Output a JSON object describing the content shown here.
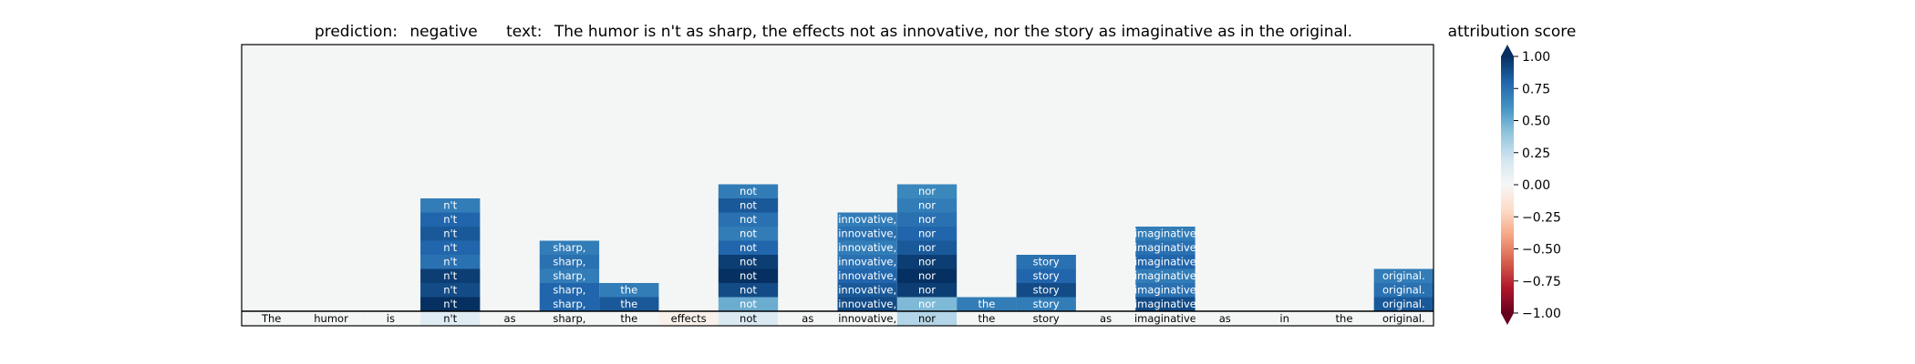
{
  "title": {
    "prediction_label": "prediction:",
    "prediction_value": "negative",
    "text_label": "text:",
    "text_value": "The humor is n't as sharp, the effects not as innovative, nor the story as imaginative as in the original."
  },
  "colorbar": {
    "label": "attribution score",
    "ticks": [
      "1.00",
      "0.75",
      "0.50",
      "0.25",
      "0.00",
      "−0.25",
      "−0.50",
      "−0.75",
      "−1.00"
    ],
    "tick_values": [
      1.0,
      0.75,
      0.5,
      0.25,
      0.0,
      -0.25,
      -0.5,
      -0.75,
      -1.0
    ],
    "colormap": "RdBu"
  },
  "chart_data": {
    "type": "heatmap",
    "title": "prediction:  negative     text:  The humor is n't as sharp, the effects not as innovative, nor the story as imaginative as in the original.",
    "tokens": [
      "The",
      "humor",
      "is",
      "n't",
      "as",
      "sharp,",
      "the",
      "effects",
      "not",
      "as",
      "innovative,",
      "nor",
      "the",
      "story",
      "as",
      "imaginative",
      "as",
      "in",
      "the",
      "original."
    ],
    "token_scores": [
      0.0,
      0.0,
      0.0,
      0.12,
      0.0,
      0.0,
      0.0,
      -0.05,
      0.15,
      0.0,
      0.0,
      0.3,
      0.0,
      0.0,
      0.0,
      0.0,
      0.0,
      0.0,
      0.0,
      0.02
    ],
    "columns": [
      {
        "token": "n't",
        "col": 3,
        "scores": [
          1.0,
          0.9,
          0.95,
          0.75,
          0.8,
          0.85,
          0.8,
          0.7
        ]
      },
      {
        "token": "sharp,",
        "col": 5,
        "scores": [
          0.8,
          0.8,
          0.7,
          0.75,
          0.7
        ]
      },
      {
        "token": "the",
        "col": 6,
        "scores": [
          0.85,
          0.7
        ]
      },
      {
        "token": "not",
        "col": 8,
        "scores": [
          0.5,
          0.9,
          1.0,
          0.95,
          0.8,
          0.7,
          0.75,
          0.85,
          0.7
        ]
      },
      {
        "token": "innovative,",
        "col": 10,
        "scores": [
          0.9,
          0.85,
          0.8,
          0.75,
          0.7,
          0.75,
          0.7
        ]
      },
      {
        "token": "nor",
        "col": 11,
        "scores": [
          0.45,
          0.95,
          1.0,
          0.95,
          0.85,
          0.8,
          0.75,
          0.7,
          0.65
        ]
      },
      {
        "token": "the",
        "col": 12,
        "scores": [
          0.7
        ]
      },
      {
        "token": "story",
        "col": 13,
        "scores": [
          0.7,
          0.9,
          0.8,
          0.75
        ]
      },
      {
        "token": "imaginative",
        "col": 15,
        "scores": [
          0.9,
          0.75,
          0.7,
          0.8,
          0.75,
          0.7
        ]
      },
      {
        "token": "original.",
        "col": 19,
        "scores": [
          0.85,
          0.75,
          0.7
        ]
      }
    ]
  }
}
